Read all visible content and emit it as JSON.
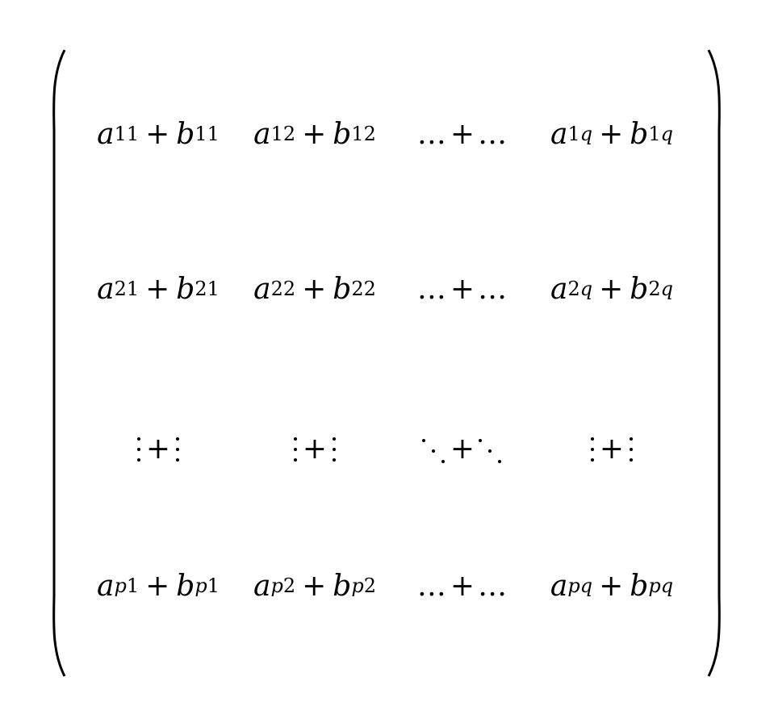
{
  "matrix": {
    "rows": [
      [
        {
          "a": "a",
          "a_sub": "11",
          "op": "+",
          "b": "b",
          "b_sub": "11"
        },
        {
          "a": "a",
          "a_sub": "12",
          "op": "+",
          "b": "b",
          "b_sub": "12"
        },
        {
          "left": "…",
          "op": "+",
          "right": "…"
        },
        {
          "a": "a",
          "a_sub": "1q",
          "op": "+",
          "b": "b",
          "b_sub": "1q"
        }
      ],
      [
        {
          "a": "a",
          "a_sub": "21",
          "op": "+",
          "b": "b",
          "b_sub": "21"
        },
        {
          "a": "a",
          "a_sub": "22",
          "op": "+",
          "b": "b",
          "b_sub": "22"
        },
        {
          "left": "…",
          "op": "+",
          "right": "…"
        },
        {
          "a": "a",
          "a_sub": "2q",
          "op": "+",
          "b": "b",
          "b_sub": "2q"
        }
      ],
      [
        {
          "left": "⋮",
          "op": "+",
          "right": "⋮"
        },
        {
          "left": "⋮",
          "op": "+",
          "right": "⋮"
        },
        {
          "left": "⋱",
          "op": "+",
          "right": "⋱"
        },
        {
          "left": "⋮",
          "op": "+",
          "right": "⋮"
        }
      ],
      [
        {
          "a": "a",
          "a_sub": "p1",
          "op": "+",
          "b": "b",
          "b_sub": "p1"
        },
        {
          "a": "a",
          "a_sub": "p2",
          "op": "+",
          "b": "b",
          "b_sub": "p2"
        },
        {
          "left": "…",
          "op": "+",
          "right": "…"
        },
        {
          "a": "a",
          "a_sub": "pq",
          "op": "+",
          "b": "b",
          "b_sub": "pq"
        }
      ]
    ]
  }
}
